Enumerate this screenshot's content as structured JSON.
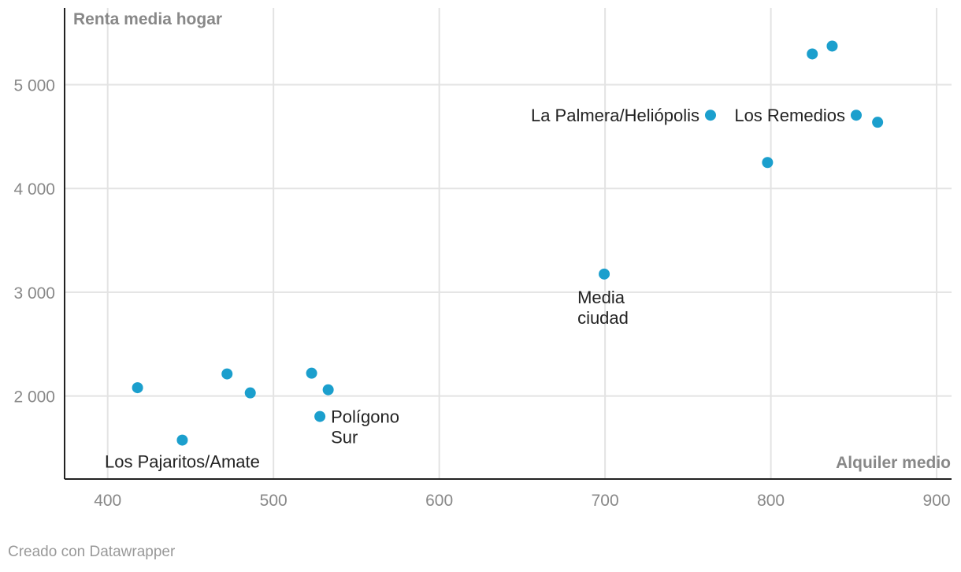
{
  "chart_data": {
    "type": "scatter",
    "xlabel": "Alquiler medio",
    "ylabel": "Renta media hogar",
    "xlim": [
      374,
      909
    ],
    "ylim": [
      1200,
      5740
    ],
    "x_ticks": [
      400,
      500,
      600,
      700,
      800,
      900
    ],
    "x_tick_labels": [
      "400",
      "500",
      "600",
      "700",
      "800",
      "900"
    ],
    "y_ticks": [
      2000,
      3000,
      4000,
      5000
    ],
    "y_tick_labels": [
      "2 000",
      "3 000",
      "4 000",
      "5 000"
    ],
    "grid": true,
    "color": "#1b9fcd",
    "points": [
      {
        "x": 418,
        "y": 2080,
        "label": ""
      },
      {
        "x": 445,
        "y": 1575,
        "label": "Los Pajaritos/Amate",
        "pos": "below"
      },
      {
        "x": 472,
        "y": 2213,
        "label": ""
      },
      {
        "x": 486,
        "y": 2030,
        "label": ""
      },
      {
        "x": 523,
        "y": 2220,
        "label": ""
      },
      {
        "x": 533,
        "y": 2060,
        "label": ""
      },
      {
        "x": 528,
        "y": 1803,
        "label": "Polígono|Sur",
        "pos": "right"
      },
      {
        "x": 699.5,
        "y": 3175,
        "label": "Media|ciudad",
        "pos": "below-right"
      },
      {
        "x": 763.6,
        "y": 4706,
        "label": "La Palmera/Heliópolis",
        "pos": "left"
      },
      {
        "x": 798,
        "y": 4250,
        "label": ""
      },
      {
        "x": 825,
        "y": 5296,
        "label": ""
      },
      {
        "x": 837,
        "y": 5372,
        "label": ""
      },
      {
        "x": 851.5,
        "y": 4706,
        "label": "Los Remedios",
        "pos": "left"
      },
      {
        "x": 864.4,
        "y": 4638,
        "label": ""
      }
    ]
  },
  "footer": "Creado con Datawrapper"
}
